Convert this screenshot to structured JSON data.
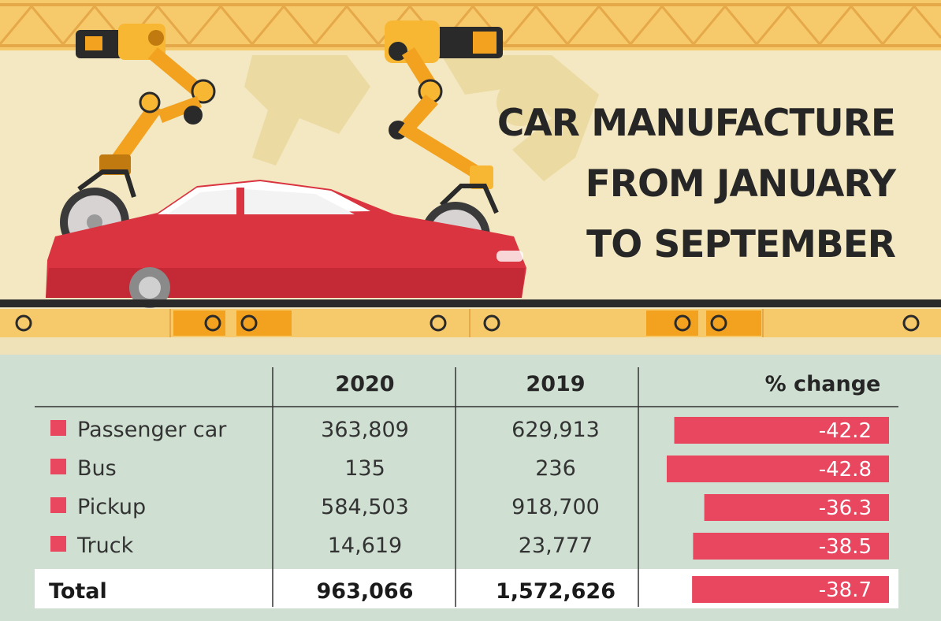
{
  "title_lines": [
    "CAR MANUFACTURE",
    "FROM JANUARY",
    "TO SEPTEMBER"
  ],
  "colors": {
    "accent_bar": "#e8475f",
    "row_marker": "#e8475f",
    "table_bg": "#cfe0d3",
    "header_bg": "#f4e8c2",
    "total_row_bg": "#ffffff"
  },
  "chart_data": {
    "type": "table",
    "columns": [
      "2020",
      "2019",
      "% change"
    ],
    "rows": [
      {
        "label": "Passenger car",
        "y2020": "363,809",
        "y2019": "629,913",
        "change": "-42.2",
        "change_value": -42.2
      },
      {
        "label": "Bus",
        "y2020": "135",
        "y2019": "236",
        "change": "-42.8",
        "change_value": -42.8
      },
      {
        "label": "Pickup",
        "y2020": "584,503",
        "y2019": "918,700",
        "change": "-36.3",
        "change_value": -36.3
      },
      {
        "label": "Truck",
        "y2020": "14,619",
        "y2019": "23,777",
        "change": "-38.5",
        "change_value": -38.5
      }
    ],
    "total": {
      "label": "Total",
      "y2020": "963,066",
      "y2019": "1,572,626",
      "change": "-38.7",
      "change_value": -38.7
    }
  }
}
